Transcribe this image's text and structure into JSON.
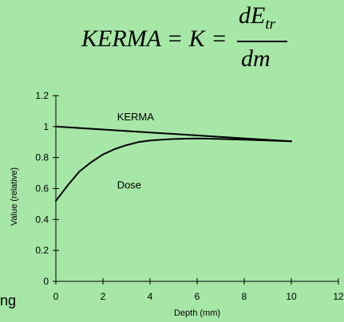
{
  "formula": {
    "lhs": "KERMA = K =",
    "numerator": "dE",
    "numerator_sub": "tr",
    "denominator": "dm"
  },
  "clipped_text": "ng",
  "chart_data": {
    "type": "line",
    "xlabel": "Depth (mm)",
    "ylabel": "Value (relative)",
    "xlim": [
      0,
      12
    ],
    "ylim": [
      0,
      1.2
    ],
    "xticks": [
      0,
      2,
      4,
      6,
      8,
      10,
      12
    ],
    "yticks": [
      0,
      0.2,
      0.4,
      0.6,
      0.8,
      1,
      1.2
    ],
    "xtick_labels": [
      "0",
      "2",
      "4",
      "6",
      "8",
      "10",
      "12"
    ],
    "ytick_labels": [
      "0",
      "0.2",
      "0.4",
      "0.6",
      "0.8",
      "1",
      "1.2"
    ],
    "grid": false,
    "legend": "none",
    "series": [
      {
        "name": "KERMA",
        "color": "#000000",
        "x": [
          0,
          2,
          4,
          6,
          8,
          10
        ],
        "y": [
          1.0,
          0.981,
          0.962,
          0.943,
          0.924,
          0.905
        ]
      },
      {
        "name": "Dose",
        "color": "#000000",
        "x": [
          0,
          0.25,
          0.5,
          1,
          1.5,
          2,
          2.5,
          3,
          3.5,
          4,
          4.5,
          5,
          5.5,
          6,
          6.5,
          7,
          8,
          9,
          10
        ],
        "y": [
          0.52,
          0.57,
          0.62,
          0.71,
          0.77,
          0.82,
          0.855,
          0.88,
          0.9,
          0.91,
          0.915,
          0.92,
          0.922,
          0.923,
          0.922,
          0.92,
          0.915,
          0.91,
          0.905
        ]
      }
    ],
    "annotations": [
      {
        "text": "KERMA",
        "x": 2.6,
        "y": 1.04
      },
      {
        "text": "Dose",
        "x": 2.6,
        "y": 0.6
      }
    ]
  }
}
